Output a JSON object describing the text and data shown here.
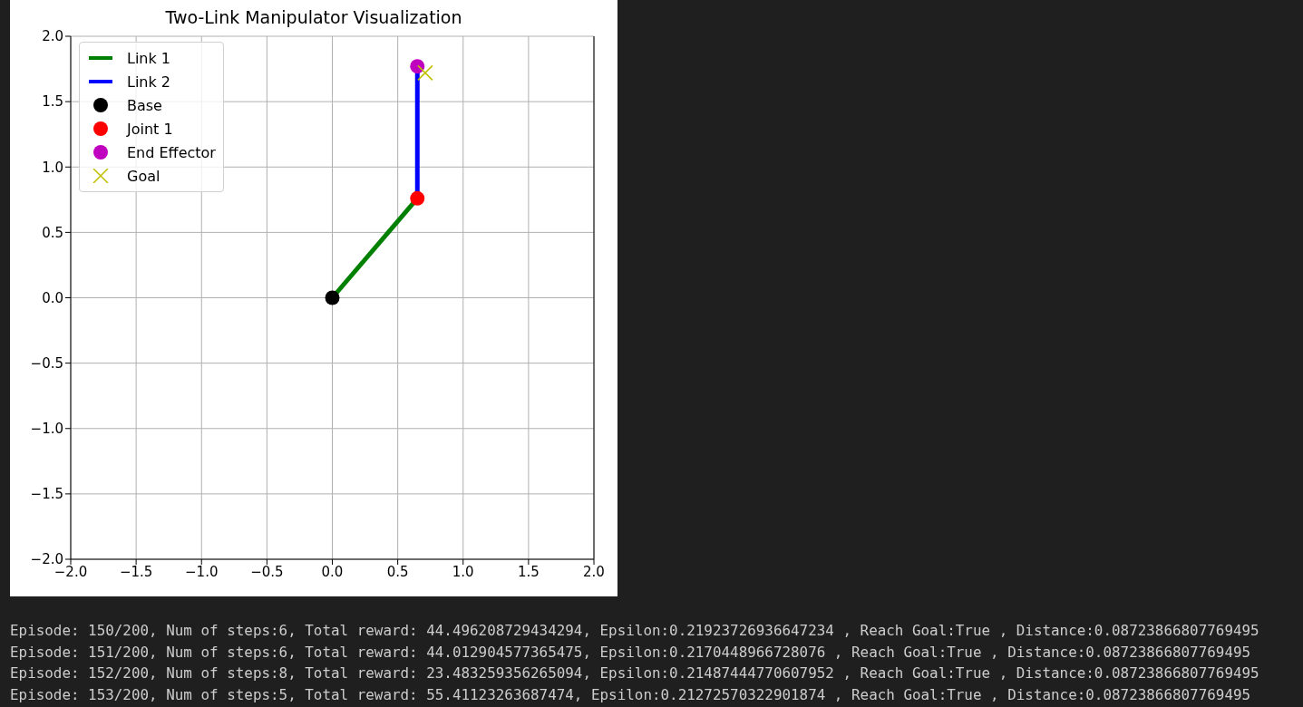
{
  "chart_data": {
    "type": "line",
    "title": "Two-Link Manipulator Visualization",
    "xlim": [
      -2,
      2
    ],
    "ylim": [
      -2,
      2
    ],
    "xticks": [
      {
        "value": -2,
        "label": "−2.0"
      },
      {
        "value": -1.5,
        "label": "−1.5"
      },
      {
        "value": -1,
        "label": "−1.0"
      },
      {
        "value": -0.5,
        "label": "−0.5"
      },
      {
        "value": 0,
        "label": "0.0"
      },
      {
        "value": 0.5,
        "label": "0.5"
      },
      {
        "value": 1,
        "label": "1.0"
      },
      {
        "value": 1.5,
        "label": "1.5"
      },
      {
        "value": 2,
        "label": "2.0"
      }
    ],
    "yticks": [
      {
        "value": -2,
        "label": "−2.0"
      },
      {
        "value": -1.5,
        "label": "−1.5"
      },
      {
        "value": -1,
        "label": "−1.0"
      },
      {
        "value": -0.5,
        "label": "−0.5"
      },
      {
        "value": 0,
        "label": "0.0"
      },
      {
        "value": 0.5,
        "label": "0.5"
      },
      {
        "value": 1,
        "label": "1.0"
      },
      {
        "value": 1.5,
        "label": "1.5"
      },
      {
        "value": 2,
        "label": "2.0"
      }
    ],
    "grid": true,
    "legend": "top left",
    "series": [
      {
        "name": "Link 1",
        "color": "#008000",
        "x": [
          0,
          0.65
        ],
        "values": [
          0,
          0.76
        ]
      },
      {
        "name": "Link 2",
        "color": "#0000ff",
        "x": [
          0.65,
          0.65
        ],
        "values": [
          0.76,
          1.77
        ]
      },
      {
        "name": "Base",
        "type": "scatter",
        "marker": "circle",
        "color": "#000000",
        "x": [
          0
        ],
        "values": [
          0
        ]
      },
      {
        "name": "Joint 1",
        "type": "scatter",
        "marker": "circle",
        "color": "#ff0000",
        "x": [
          0.65
        ],
        "values": [
          0.76
        ]
      },
      {
        "name": "End Effector",
        "type": "scatter",
        "marker": "circle",
        "color": "#bf00bf",
        "x": [
          0.65
        ],
        "values": [
          1.77
        ]
      },
      {
        "name": "Goal",
        "type": "scatter",
        "marker": "cross",
        "color": "#bfbf00",
        "x": [
          0.71
        ],
        "values": [
          1.72
        ]
      }
    ],
    "annotations": [
      "Episode: 150/200, Num of steps:6, Total reward: 44.496208729434294, Epsilon:0.21923726936647234 , Reach Goal:True , Distance:0.08723866807769495",
      "Episode: 151/200, Num of steps:6, Total reward: 44.012904577365475, Epsilon:0.2170448966728076 , Reach Goal:True , Distance:0.08723866807769495",
      "Episode: 152/200, Num of steps:8, Total reward: 23.483259356265094, Epsilon:0.21487444770607952 , Reach Goal:True , Distance:0.08723866807769495",
      "Episode: 153/200, Num of steps:5, Total reward: 55.41123263687474, Epsilon:0.21272570322901874 , Reach Goal:True , Distance:0.08723866807769495"
    ]
  }
}
